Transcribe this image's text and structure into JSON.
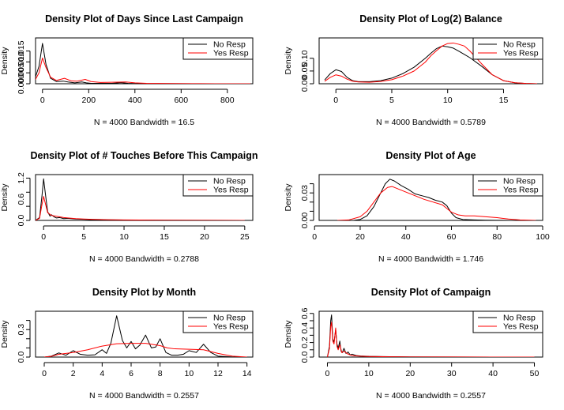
{
  "colors": {
    "no_resp": "#000000",
    "yes_resp": "#ff0000",
    "axis": "#000000"
  },
  "chart_data": [
    {
      "type": "line",
      "title": "Density Plot of Days Since Last Campaign",
      "ylabel": "Density",
      "subtitle": "N = 4000   Bandwidth = 16.5",
      "xlim": [
        -30,
        910
      ],
      "ylim": [
        0,
        0.021
      ],
      "xticks": [
        0,
        200,
        400,
        600,
        800
      ],
      "yticks": [
        0.0,
        0.005,
        0.01,
        0.015
      ],
      "ytick_labels": [
        "0.000",
        "0.005",
        "0.010",
        "0.015"
      ],
      "legend": [
        "No Resp",
        "Yes Resp"
      ],
      "legend_position": "top-right",
      "series": [
        {
          "name": "No Resp",
          "x": [
            -40,
            -15,
            0,
            15,
            35,
            60,
            90,
            110,
            140,
            170,
            190,
            210,
            250,
            300,
            340,
            370,
            400,
            450,
            550,
            650,
            750,
            850,
            900
          ],
          "y": [
            0.0,
            0.008,
            0.0185,
            0.009,
            0.0025,
            0.001,
            0.0012,
            0.0008,
            0.0004,
            0.0008,
            0.0004,
            0.0002,
            0.0002,
            0.0002,
            0.0005,
            0.0002,
            0.0001,
            5e-05,
            3e-05,
            2e-05,
            1e-05,
            5e-06,
            0.0
          ]
        },
        {
          "name": "Yes Resp",
          "x": [
            -40,
            -15,
            0,
            15,
            35,
            60,
            95,
            125,
            150,
            185,
            210,
            250,
            300,
            360,
            400,
            450,
            550,
            650,
            750,
            850,
            900
          ],
          "y": [
            0.0,
            0.005,
            0.0118,
            0.0075,
            0.003,
            0.0015,
            0.0025,
            0.0013,
            0.0012,
            0.002,
            0.001,
            0.0006,
            0.0007,
            0.0008,
            0.0004,
            0.0002,
            0.0001,
            5e-05,
            2e-05,
            1e-05,
            0.0
          ]
        }
      ]
    },
    {
      "type": "line",
      "title": "Density Plot of Log(2) Balance",
      "ylabel": "Density",
      "subtitle": "N = 4000   Bandwidth = 0.5789",
      "xlim": [
        -1.5,
        18.5
      ],
      "ylim": [
        0,
        0.18
      ],
      "xticks": [
        0,
        5,
        10,
        15
      ],
      "yticks": [
        0.0,
        0.05,
        0.1
      ],
      "ytick_labels": [
        "0.00",
        "0.05",
        "0.10"
      ],
      "legend": [
        "No Resp",
        "Yes Resp"
      ],
      "legend_position": "top-right",
      "series": [
        {
          "name": "No Resp",
          "x": [
            -1.0,
            -0.5,
            0.0,
            0.5,
            1.0,
            1.5,
            2.0,
            3.0,
            4.0,
            5.0,
            6.0,
            7.0,
            8.0,
            8.5,
            9.0,
            9.5,
            10.0,
            10.5,
            11.0,
            11.5,
            12.0,
            13.0,
            14.0,
            15.0,
            16.0,
            17.0,
            18.0
          ],
          "y": [
            0.015,
            0.04,
            0.055,
            0.048,
            0.025,
            0.012,
            0.008,
            0.008,
            0.012,
            0.022,
            0.04,
            0.065,
            0.1,
            0.12,
            0.138,
            0.148,
            0.145,
            0.14,
            0.128,
            0.115,
            0.102,
            0.07,
            0.035,
            0.012,
            0.004,
            0.001,
            0.0
          ]
        },
        {
          "name": "Yes Resp",
          "x": [
            -1.0,
            -0.5,
            0.0,
            0.5,
            1.0,
            1.5,
            2.0,
            3.0,
            4.0,
            5.0,
            6.0,
            7.0,
            8.0,
            8.5,
            9.0,
            9.5,
            10.0,
            10.5,
            11.0,
            11.5,
            12.0,
            13.0,
            14.0,
            15.0,
            16.0,
            17.0,
            18.0
          ],
          "y": [
            0.01,
            0.025,
            0.035,
            0.03,
            0.018,
            0.01,
            0.007,
            0.006,
            0.009,
            0.016,
            0.03,
            0.05,
            0.085,
            0.11,
            0.13,
            0.148,
            0.158,
            0.16,
            0.155,
            0.148,
            0.128,
            0.08,
            0.035,
            0.012,
            0.004,
            0.001,
            0.0
          ]
        }
      ]
    },
    {
      "type": "line",
      "title": "Density Plot of # Touches Before This Campaign",
      "ylabel": "Density",
      "subtitle": "N = 4000   Bandwidth = 0.2788",
      "xlim": [
        -1,
        26
      ],
      "ylim": [
        0,
        1.3
      ],
      "xticks": [
        0,
        5,
        10,
        15,
        20,
        25
      ],
      "yticks": [
        0.0,
        0.4,
        0.8,
        1.2
      ],
      "ytick_labels": [
        "0.0",
        "0.6",
        "1.2"
      ],
      "ytick_label_values": [
        0.0,
        0.6,
        1.2
      ],
      "legend": [
        "No Resp",
        "Yes Resp"
      ],
      "legend_position": "top-right",
      "series": [
        {
          "name": "No Resp",
          "x": [
            -1.0,
            -0.5,
            -0.2,
            0.0,
            0.2,
            0.5,
            0.8,
            1.0,
            1.3,
            1.6,
            2.0,
            2.5,
            3.0,
            4.0,
            5.0,
            6.0,
            8.0,
            10.0,
            12.0,
            15.0,
            20.0,
            25.0
          ],
          "y": [
            0.0,
            0.08,
            0.7,
            1.18,
            0.8,
            0.25,
            0.12,
            0.16,
            0.1,
            0.07,
            0.08,
            0.05,
            0.06,
            0.04,
            0.03,
            0.02,
            0.015,
            0.01,
            0.008,
            0.005,
            0.002,
            0.0
          ]
        },
        {
          "name": "Yes Resp",
          "x": [
            -1.0,
            -0.5,
            -0.2,
            0.0,
            0.2,
            0.5,
            1.0,
            1.5,
            2.0,
            2.5,
            3.0,
            4.0,
            5.0,
            6.0,
            8.0,
            10.0,
            12.0,
            15.0,
            20.0,
            25.0
          ],
          "y": [
            0.0,
            0.06,
            0.45,
            0.68,
            0.5,
            0.22,
            0.14,
            0.12,
            0.1,
            0.08,
            0.07,
            0.05,
            0.04,
            0.03,
            0.02,
            0.015,
            0.01,
            0.006,
            0.002,
            0.0
          ]
        }
      ]
    },
    {
      "type": "line",
      "title": "Density Plot of Age",
      "ylabel": "Density",
      "subtitle": "N = 4000   Bandwidth = 1.746",
      "xlim": [
        2,
        100
      ],
      "ylim": [
        0,
        0.05
      ],
      "xticks": [
        0,
        20,
        40,
        60,
        80,
        100
      ],
      "yticks": [
        0.0,
        0.01,
        0.02,
        0.03,
        0.04
      ],
      "ytick_labels": [
        "0.00",
        "0.03"
      ],
      "ytick_label_values": [
        0.0,
        0.03
      ],
      "legend": [
        "No Resp",
        "Yes Resp"
      ],
      "legend_position": "top-right",
      "series": [
        {
          "name": "No Resp",
          "x": [
            17,
            20,
            23,
            26,
            29,
            31,
            33,
            35,
            38,
            41,
            44,
            47,
            50,
            53,
            56,
            58,
            60,
            62,
            65,
            70,
            75,
            80,
            85,
            90
          ],
          "y": [
            0.0,
            0.001,
            0.005,
            0.015,
            0.03,
            0.04,
            0.045,
            0.043,
            0.038,
            0.034,
            0.029,
            0.027,
            0.025,
            0.022,
            0.02,
            0.016,
            0.008,
            0.003,
            0.001,
            0.0005,
            0.0002,
            0.0001,
            0.0,
            0.0
          ]
        },
        {
          "name": "Yes Resp",
          "x": [
            10,
            15,
            20,
            23,
            26,
            29,
            32,
            34,
            37,
            40,
            44,
            48,
            52,
            56,
            58,
            60,
            63,
            66,
            70,
            75,
            80,
            85,
            90,
            97
          ],
          "y": [
            0.0,
            0.0005,
            0.004,
            0.01,
            0.02,
            0.03,
            0.036,
            0.037,
            0.034,
            0.031,
            0.027,
            0.023,
            0.02,
            0.017,
            0.013,
            0.009,
            0.006,
            0.005,
            0.005,
            0.004,
            0.003,
            0.0015,
            0.0005,
            0.0
          ]
        }
      ]
    },
    {
      "type": "line",
      "title": "Density Plot by Month",
      "ylabel": "Density",
      "subtitle": "N = 4000   Bandwidth = 0.2557",
      "xlim": [
        -0.6,
        14.4
      ],
      "ylim": [
        0,
        0.5
      ],
      "xticks": [
        0,
        2,
        4,
        6,
        8,
        10,
        12,
        14
      ],
      "yticks": [
        0.0,
        0.1,
        0.2,
        0.3,
        0.4
      ],
      "ytick_labels": [
        "0.0",
        "0.3"
      ],
      "ytick_label_values": [
        0.0,
        0.3
      ],
      "legend": [
        "No Resp",
        "Yes Resp"
      ],
      "legend_position": "top-right",
      "series": [
        {
          "name": "No Resp",
          "x": [
            0.0,
            0.5,
            1.0,
            1.5,
            2.0,
            2.5,
            3.0,
            3.5,
            4.0,
            4.3,
            4.6,
            5.0,
            5.4,
            5.7,
            6.0,
            6.3,
            6.6,
            7.0,
            7.4,
            7.7,
            8.0,
            8.4,
            8.8,
            9.2,
            9.6,
            10.0,
            10.5,
            11.0,
            11.5,
            12.0,
            12.5,
            13.0,
            14.0
          ],
          "y": [
            0.0,
            0.01,
            0.045,
            0.02,
            0.07,
            0.03,
            0.02,
            0.025,
            0.08,
            0.04,
            0.15,
            0.45,
            0.18,
            0.1,
            0.17,
            0.09,
            0.13,
            0.24,
            0.1,
            0.11,
            0.2,
            0.05,
            0.02,
            0.02,
            0.03,
            0.07,
            0.05,
            0.14,
            0.05,
            0.01,
            0.005,
            0.001,
            0.0
          ]
        },
        {
          "name": "Yes Resp",
          "x": [
            0.0,
            0.5,
            1.0,
            1.5,
            2.0,
            3.0,
            4.0,
            5.0,
            6.0,
            7.0,
            8.0,
            8.5,
            9.0,
            10.0,
            11.0,
            12.0,
            13.0,
            14.0
          ],
          "y": [
            0.0,
            0.008,
            0.03,
            0.04,
            0.05,
            0.08,
            0.12,
            0.145,
            0.15,
            0.15,
            0.125,
            0.1,
            0.09,
            0.085,
            0.08,
            0.04,
            0.01,
            0.0
          ]
        }
      ]
    },
    {
      "type": "line",
      "title": "Density Plot of Campaign",
      "ylabel": "Density",
      "subtitle": "N = 4000   Bandwidth = 0.2557",
      "xlim": [
        -2,
        52
      ],
      "ylim": [
        0,
        0.63
      ],
      "xticks": [
        0,
        10,
        20,
        30,
        40,
        50
      ],
      "yticks": [
        0.0,
        0.1,
        0.2,
        0.3,
        0.4,
        0.5,
        0.6
      ],
      "ytick_labels": [
        "0.0",
        "0.2",
        "0.4",
        "0.6"
      ],
      "ytick_label_values": [
        0.0,
        0.2,
        0.4,
        0.6
      ],
      "legend": [
        "No Resp",
        "Yes Resp"
      ],
      "legend_position": "top-right",
      "series": [
        {
          "name": "No Resp",
          "x": [
            0.0,
            0.5,
            0.8,
            1.0,
            1.3,
            1.6,
            2.0,
            2.3,
            2.6,
            3.0,
            3.3,
            3.6,
            4.0,
            4.5,
            5.0,
            5.5,
            6.0,
            7.0,
            8.0,
            10.0,
            15.0,
            20.0,
            30.0,
            40.0,
            50.0
          ],
          "y": [
            0.0,
            0.15,
            0.5,
            0.58,
            0.25,
            0.2,
            0.38,
            0.18,
            0.12,
            0.22,
            0.08,
            0.06,
            0.12,
            0.05,
            0.07,
            0.03,
            0.04,
            0.02,
            0.015,
            0.01,
            0.005,
            0.003,
            0.001,
            0.0005,
            0.0
          ]
        },
        {
          "name": "Yes Resp",
          "x": [
            0.0,
            0.5,
            0.8,
            1.0,
            1.3,
            1.6,
            2.0,
            2.3,
            2.6,
            3.0,
            3.5,
            4.0,
            5.0,
            6.0,
            8.0,
            10.0,
            15.0,
            20.0,
            30.0,
            40.0,
            50.0
          ],
          "y": [
            0.0,
            0.12,
            0.42,
            0.48,
            0.22,
            0.18,
            0.4,
            0.15,
            0.1,
            0.17,
            0.06,
            0.08,
            0.04,
            0.02,
            0.012,
            0.008,
            0.004,
            0.002,
            0.001,
            0.0005,
            0.0
          ]
        }
      ]
    }
  ]
}
